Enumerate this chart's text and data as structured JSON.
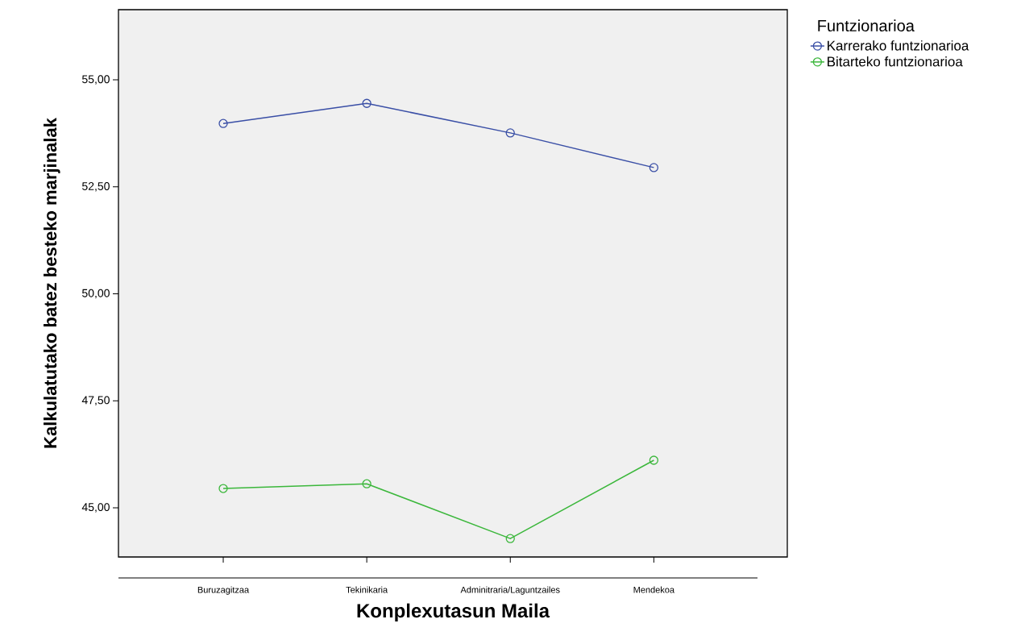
{
  "chart_data": {
    "type": "line",
    "xlabel": "Konplexutasun Maila",
    "ylabel": "Kalkulatutako batez besteko marjinalak",
    "legend_title": "Funtzionarioa",
    "categories": [
      "Buruzagitzaa",
      "Tekinikaria",
      "Adminitraria/Laguntzailes",
      "Mendekoa"
    ],
    "series": [
      {
        "name": "Karrerako funtzionarioa",
        "color": "#3a4fa6",
        "values": [
          53.98,
          54.45,
          53.76,
          52.95
        ]
      },
      {
        "name": "Bitarteko funtzionarioa",
        "color": "#3bb73b",
        "values": [
          45.45,
          45.56,
          44.28,
          46.11
        ]
      }
    ],
    "ylim": [
      43.85,
      56.64
    ],
    "yticks": [
      {
        "value": 45,
        "label": "45,00"
      },
      {
        "value": 47.5,
        "label": "47,50"
      },
      {
        "value": 50,
        "label": "50,00"
      },
      {
        "value": 52.5,
        "label": "52,50"
      },
      {
        "value": 55,
        "label": "55,00"
      }
    ],
    "marker": "circle",
    "line_style": "solid",
    "grid": false,
    "legend": "top right"
  }
}
